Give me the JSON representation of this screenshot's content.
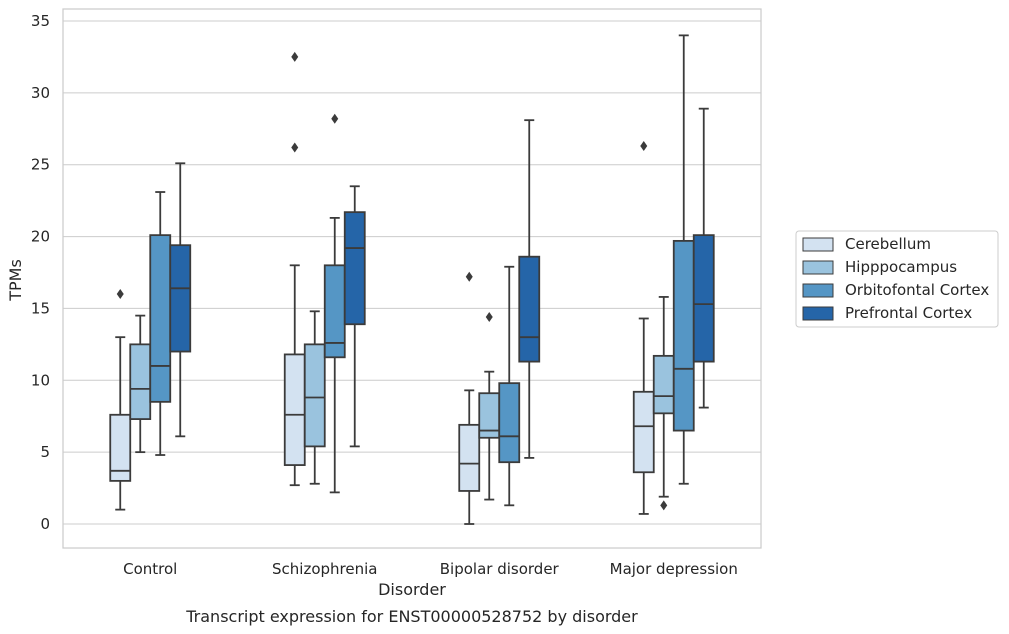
{
  "chart_data": {
    "type": "box",
    "caption": "Transcript expression for ENST00000528752 by disorder",
    "xlabel": "Disorder",
    "ylabel": "TPMs",
    "ylim": [
      -1.6,
      35.8
    ],
    "yticks": [
      0,
      5,
      10,
      15,
      20,
      25,
      30,
      35
    ],
    "grid": "horizontal",
    "legend_position": "right",
    "categories": [
      "Control",
      "Schizophrenia",
      "Bipolar disorder",
      "Major depression"
    ],
    "series": [
      {
        "name": "Cerebellum",
        "color": "#d3e2f1",
        "boxes": [
          {
            "whisker_low": 1.0,
            "q1": 3.0,
            "median": 3.7,
            "q3": 7.6,
            "whisker_high": 13.0,
            "outliers": [
              16.0
            ]
          },
          {
            "whisker_low": 2.7,
            "q1": 4.1,
            "median": 7.6,
            "q3": 11.8,
            "whisker_high": 18.0,
            "outliers": [
              26.2,
              32.5
            ]
          },
          {
            "whisker_low": 0.0,
            "q1": 2.3,
            "median": 4.2,
            "q3": 6.9,
            "whisker_high": 9.3,
            "outliers": [
              17.2
            ]
          },
          {
            "whisker_low": 0.7,
            "q1": 3.6,
            "median": 6.8,
            "q3": 9.2,
            "whisker_high": 14.3,
            "outliers": [
              26.3
            ]
          }
        ]
      },
      {
        "name": "Hipppocampus",
        "color": "#9ac3de",
        "boxes": [
          {
            "whisker_low": 5.0,
            "q1": 7.3,
            "median": 9.4,
            "q3": 12.5,
            "whisker_high": 14.5,
            "outliers": []
          },
          {
            "whisker_low": 2.8,
            "q1": 5.4,
            "median": 8.8,
            "q3": 12.5,
            "whisker_high": 14.8,
            "outliers": []
          },
          {
            "whisker_low": 1.7,
            "q1": 6.0,
            "median": 6.5,
            "q3": 9.1,
            "whisker_high": 10.6,
            "outliers": [
              14.4
            ]
          },
          {
            "whisker_low": 1.9,
            "q1": 7.7,
            "median": 8.9,
            "q3": 11.7,
            "whisker_high": 15.8,
            "outliers": [
              1.3
            ]
          }
        ]
      },
      {
        "name": "Orbitofontal Cortex",
        "color": "#5596c5",
        "boxes": [
          {
            "whisker_low": 4.8,
            "q1": 8.5,
            "median": 11.0,
            "q3": 20.1,
            "whisker_high": 23.1,
            "outliers": []
          },
          {
            "whisker_low": 2.2,
            "q1": 11.6,
            "median": 12.6,
            "q3": 18.0,
            "whisker_high": 21.3,
            "outliers": [
              28.2
            ]
          },
          {
            "whisker_low": 1.3,
            "q1": 4.3,
            "median": 6.1,
            "q3": 9.8,
            "whisker_high": 17.9,
            "outliers": []
          },
          {
            "whisker_low": 2.8,
            "q1": 6.5,
            "median": 10.8,
            "q3": 19.7,
            "whisker_high": 34.0,
            "outliers": []
          }
        ]
      },
      {
        "name": "Prefrontal Cortex",
        "color": "#2565a8",
        "boxes": [
          {
            "whisker_low": 6.1,
            "q1": 12.0,
            "median": 16.4,
            "q3": 19.4,
            "whisker_high": 25.1,
            "outliers": []
          },
          {
            "whisker_low": 5.4,
            "q1": 13.9,
            "median": 19.2,
            "q3": 21.7,
            "whisker_high": 23.5,
            "outliers": []
          },
          {
            "whisker_low": 4.6,
            "q1": 11.3,
            "median": 13.0,
            "q3": 18.6,
            "whisker_high": 28.1,
            "outliers": []
          },
          {
            "whisker_low": 8.1,
            "q1": 11.3,
            "median": 15.3,
            "q3": 20.1,
            "whisker_high": 28.9,
            "outliers": []
          }
        ]
      }
    ]
  }
}
